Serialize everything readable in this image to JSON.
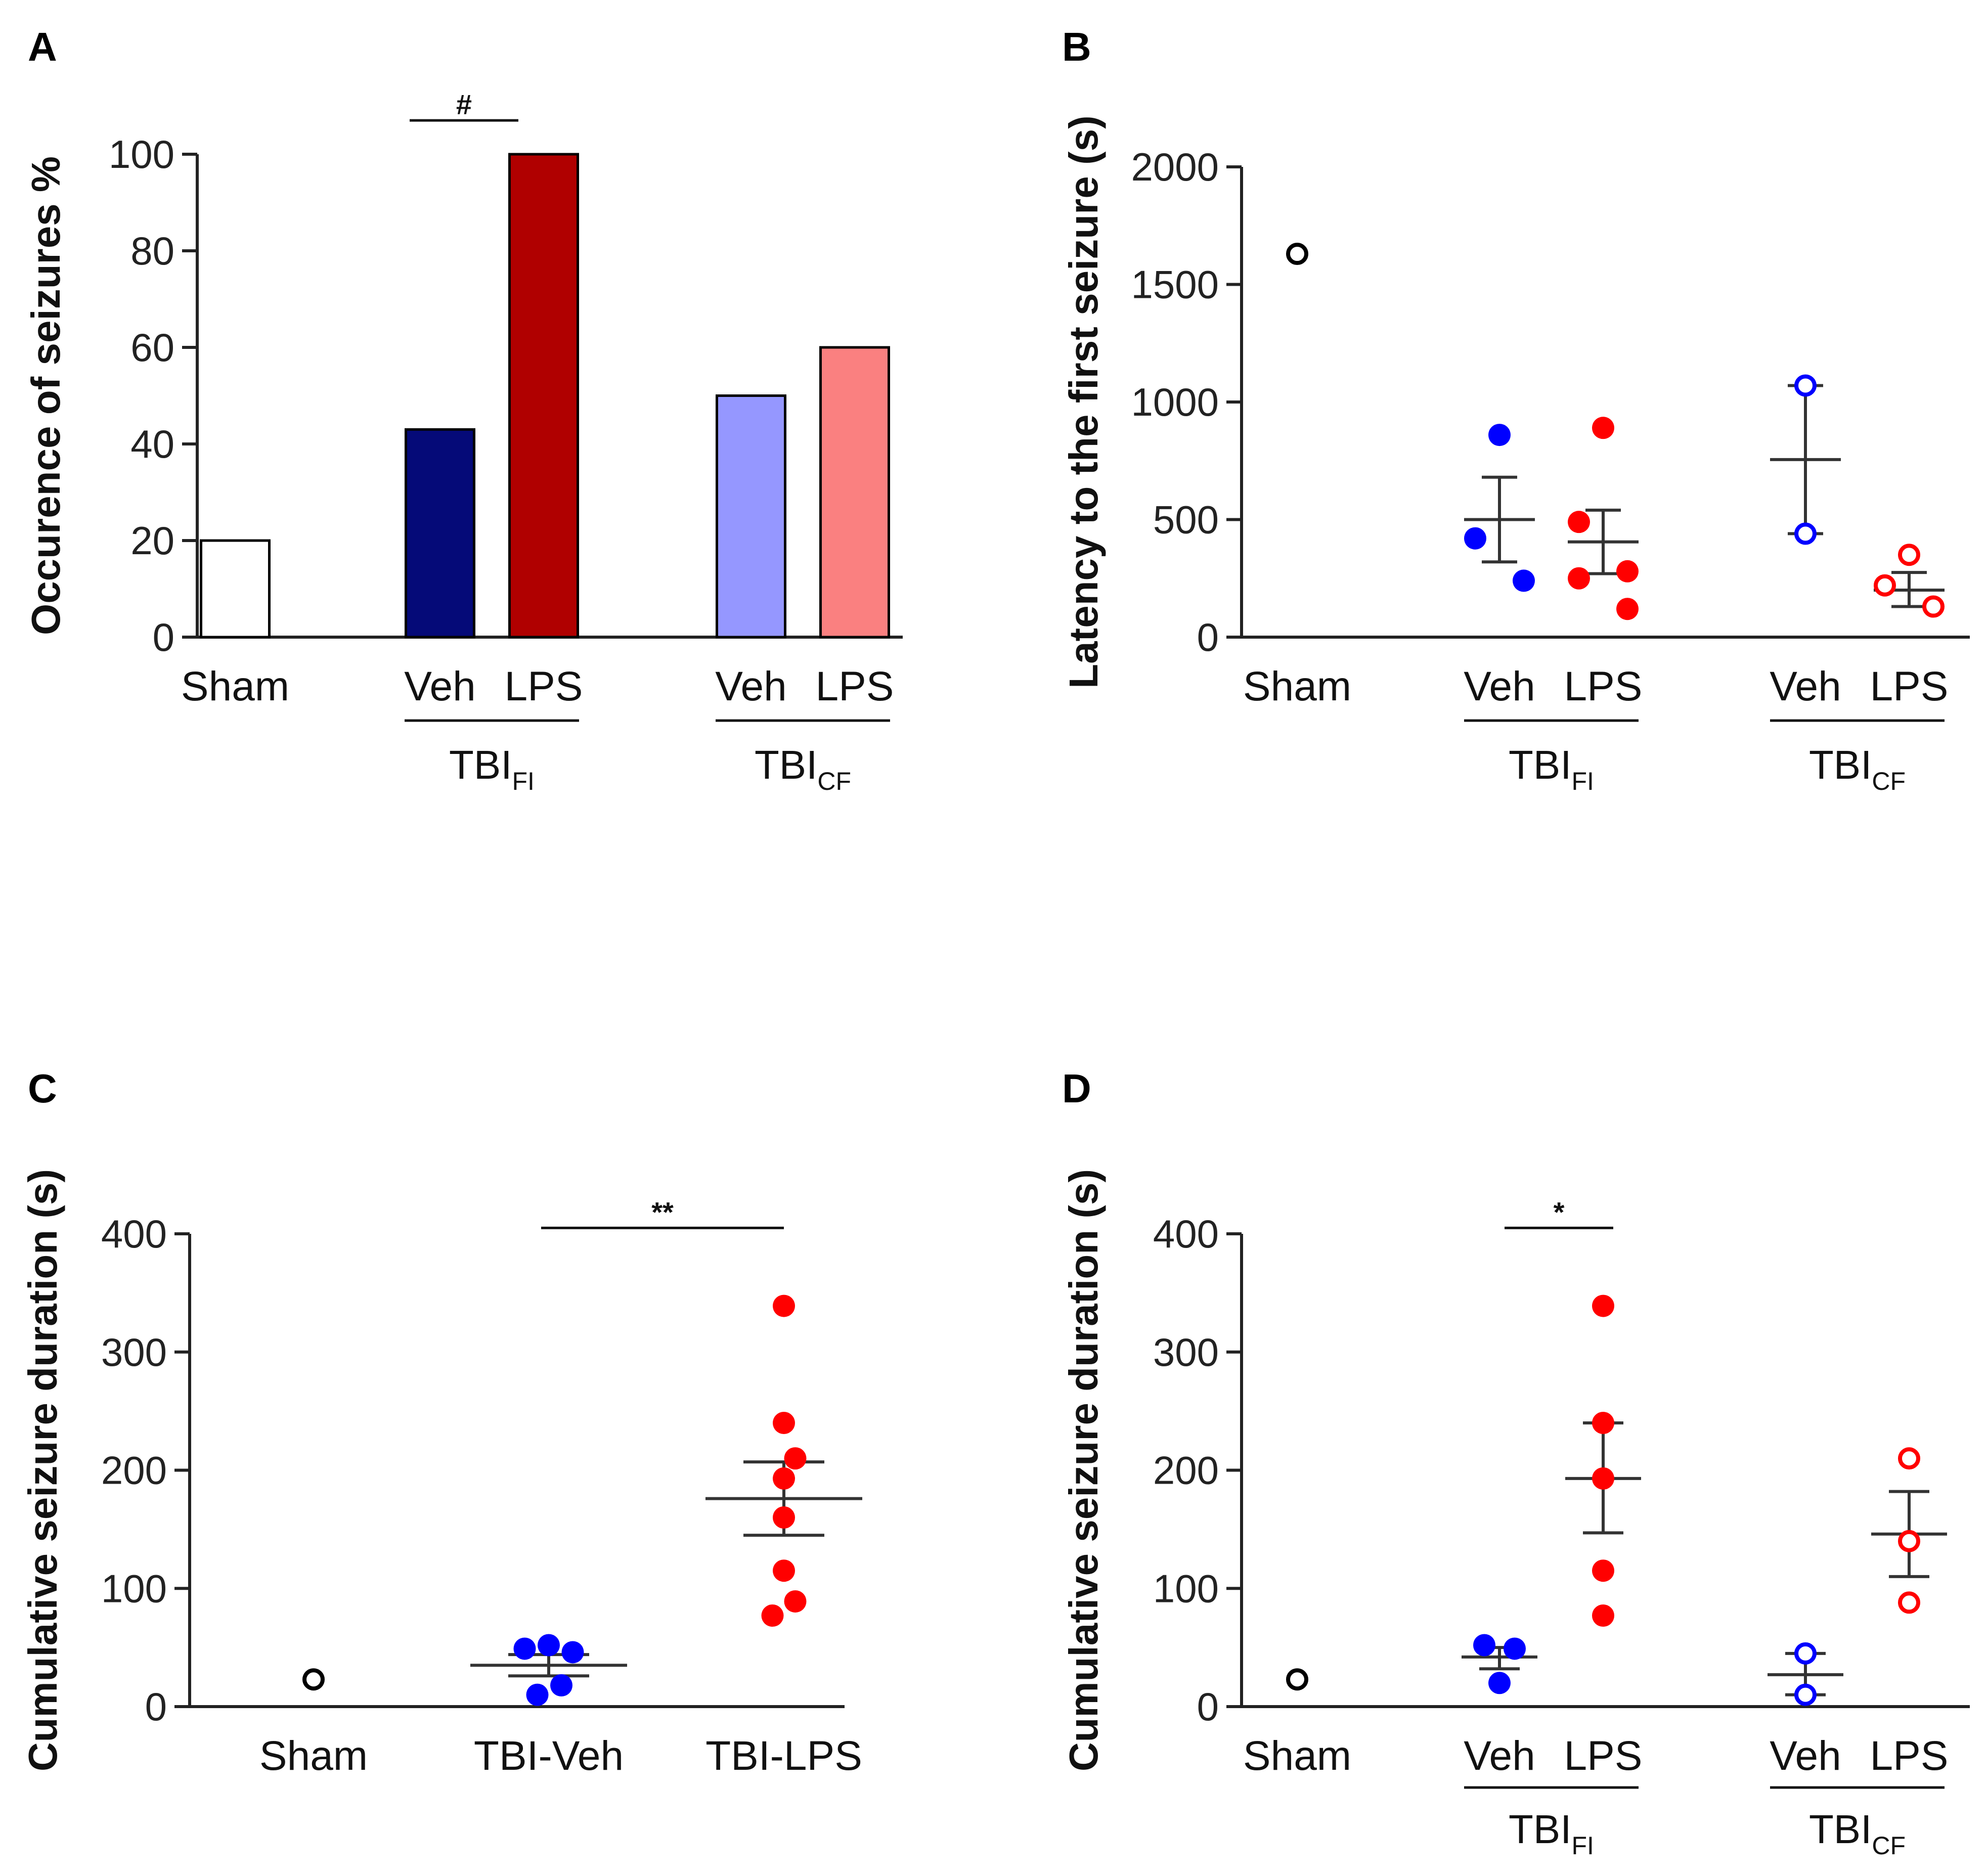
{
  "chart_data": [
    {
      "id": "A",
      "panel_label": "A",
      "type": "bar",
      "ylabel": "Occurence of seizures %",
      "ylim": [
        0,
        100
      ],
      "yticks": [
        "0",
        "20",
        "40",
        "60",
        "80",
        "100"
      ],
      "bars": [
        {
          "category": "Sham",
          "value": 20,
          "color": "#ffffff",
          "outline": "#000000"
        },
        {
          "category": "Veh",
          "value": 43,
          "color": "#050a78",
          "outline": "#000000"
        },
        {
          "category": "LPS",
          "value": 100,
          "color": "#b00000",
          "outline": "#000000"
        },
        {
          "category": "Veh",
          "value": 50,
          "color": "#9597ff",
          "outline": "#000000"
        },
        {
          "category": "LPS",
          "value": 60,
          "color": "#fa8080",
          "outline": "#000000"
        }
      ],
      "groups": [
        {
          "name": "TBI",
          "sub": "FI",
          "from": 1,
          "to": 2
        },
        {
          "name": "TBI",
          "sub": "CF",
          "from": 3,
          "to": 4
        }
      ],
      "significance": [
        {
          "from": 1,
          "to": 2,
          "label": "#",
          "y": 107
        }
      ]
    },
    {
      "id": "B",
      "panel_label": "B",
      "type": "scatter",
      "ylabel": "Latency to the first seizure (s)",
      "ylim": [
        0,
        2000
      ],
      "yticks": [
        "0",
        "500",
        "1000",
        "1500",
        "2000"
      ],
      "categories": [
        "Sham",
        "Veh",
        "LPS",
        "Veh",
        "LPS"
      ],
      "series": [
        {
          "category": "Sham",
          "color": "#000000",
          "filled": false,
          "points": [
            1630
          ]
        },
        {
          "category": "Veh",
          "color": "#0000ff",
          "filled": true,
          "points": [
            860,
            420,
            240
          ],
          "mean": 500,
          "sem_low": 320,
          "sem_high": 680
        },
        {
          "category": "LPS",
          "color": "#ff0000",
          "filled": true,
          "points": [
            890,
            490,
            280,
            250,
            120
          ],
          "mean": 405,
          "sem_low": 270,
          "sem_high": 540
        },
        {
          "category": "Veh",
          "color": "#0000ff",
          "filled": false,
          "points": [
            1070,
            440
          ],
          "mean": 755,
          "sem_low": 440,
          "sem_high": 1070
        },
        {
          "category": "LPS",
          "color": "#ff0000",
          "filled": false,
          "points": [
            350,
            220,
            130
          ],
          "mean": 200,
          "sem_low": 130,
          "sem_high": 275
        }
      ],
      "groups": [
        {
          "name": "TBI",
          "sub": "FI",
          "from": 1,
          "to": 2
        },
        {
          "name": "TBI",
          "sub": "CF",
          "from": 3,
          "to": 4
        }
      ],
      "significance": []
    },
    {
      "id": "C",
      "panel_label": "C",
      "type": "scatter",
      "ylabel": "Cumulative seizure duration (s)",
      "ylim": [
        0,
        400
      ],
      "yticks": [
        "0",
        "100",
        "200",
        "300",
        "400"
      ],
      "categories": [
        "Sham",
        "TBI-Veh",
        "TBI-LPS"
      ],
      "series": [
        {
          "category": "Sham",
          "color": "#000000",
          "filled": false,
          "points": [
            [
              0,
              23
            ]
          ]
        },
        {
          "category": "TBI-Veh",
          "color": "#0000ff",
          "filled": true,
          "points": [
            [
              -0.19,
              49
            ],
            [
              0.0,
              52
            ],
            [
              0.19,
              46
            ],
            [
              -0.09,
              10
            ],
            [
              0.1,
              18
            ]
          ],
          "mean": 35,
          "sem_low": 26,
          "sem_high": 44
        },
        {
          "category": "TBI-LPS",
          "color": "#ff0000",
          "filled": true,
          "points": [
            [
              0.0,
              339
            ],
            [
              0.0,
              240
            ],
            [
              0.09,
              210
            ],
            [
              0.0,
              193
            ],
            [
              0.0,
              160
            ],
            [
              0.0,
              115
            ],
            [
              -0.09,
              77
            ],
            [
              0.09,
              89
            ]
          ],
          "mean": 176,
          "sem_low": 145,
          "sem_high": 207
        }
      ],
      "significance": [
        {
          "from": 1,
          "to": 2,
          "label": "**",
          "y": 405
        }
      ]
    },
    {
      "id": "D",
      "panel_label": "D",
      "type": "scatter",
      "ylabel": "Cumulative seizure duration (s)",
      "ylim": [
        0,
        400
      ],
      "yticks": [
        "0",
        "100",
        "200",
        "300",
        "400"
      ],
      "categories": [
        "Sham",
        "Veh",
        "LPS",
        "Veh",
        "LPS"
      ],
      "series": [
        {
          "category": "Sham",
          "color": "#000000",
          "filled": false,
          "points": [
            [
              0,
              23
            ]
          ]
        },
        {
          "category": "Veh",
          "color": "#0000ff",
          "filled": true,
          "points": [
            [
              -0.15,
              52
            ],
            [
              0.15,
              49
            ],
            [
              0.0,
              20
            ]
          ],
          "mean": 42,
          "sem_low": 32,
          "sem_high": 50
        },
        {
          "category": "LPS",
          "color": "#ff0000",
          "filled": true,
          "points": [
            [
              0.0,
              339
            ],
            [
              0.0,
              240
            ],
            [
              0.0,
              193
            ],
            [
              0.0,
              115
            ],
            [
              0.0,
              77
            ]
          ],
          "mean": 193,
          "sem_low": 147,
          "sem_high": 240
        },
        {
          "category": "Veh",
          "color": "#0000ff",
          "filled": false,
          "points": [
            [
              0.0,
              45
            ],
            [
              0.0,
              10
            ]
          ],
          "mean": 27,
          "sem_low": 10,
          "sem_high": 45
        },
        {
          "category": "LPS",
          "color": "#ff0000",
          "filled": false,
          "points": [
            [
              0.0,
              210
            ],
            [
              0.0,
              140
            ],
            [
              0.0,
              88
            ]
          ],
          "mean": 146,
          "sem_low": 110,
          "sem_high": 182
        }
      ],
      "groups": [
        {
          "name": "TBI",
          "sub": "FI",
          "from": 1,
          "to": 2
        },
        {
          "name": "TBI",
          "sub": "CF",
          "from": 3,
          "to": 4
        }
      ],
      "significance": [
        {
          "from": 1,
          "to": 2,
          "label": "*",
          "y": 405
        }
      ]
    }
  ]
}
